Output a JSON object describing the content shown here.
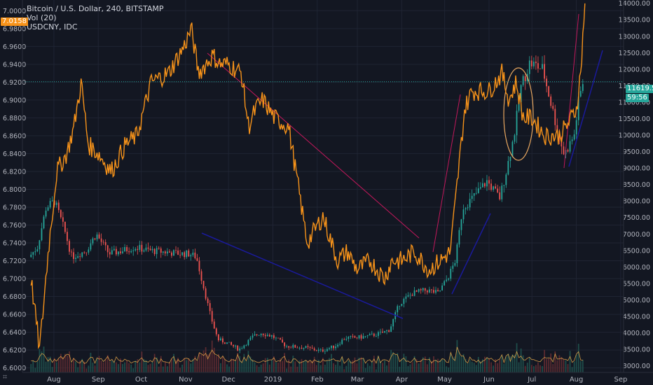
{
  "legend": {
    "line1": "Bitcoin / U.S. Dollar, 240, BITSTAMP",
    "line2": "Vol (20)",
    "line3": "USDCNY, IDC"
  },
  "tags": {
    "left_usdcny": "7.0158",
    "right_price": "11619.50",
    "right_timer": "59:56"
  },
  "colors": {
    "background": "#131722",
    "usdcny_line": "#f7931a",
    "bullish_candle": "#26a69a",
    "bearish_candle": "#ef5350",
    "trend_red": "#c2185b",
    "trend_blue": "#1a1a9a"
  },
  "icons": {
    "corner": "tv-logo-icon"
  },
  "chart_data": {
    "type": "line",
    "x_ticks": [
      "Aug",
      "Sep",
      "Oct",
      "Nov",
      "Dec",
      "2019",
      "Feb",
      "Mar",
      "Apr",
      "May",
      "Jun",
      "Jul",
      "Aug",
      "Sep"
    ],
    "left_axis": {
      "ticks": [
        "7.0000",
        "6.9800",
        "6.9600",
        "6.9400",
        "6.9200",
        "6.9000",
        "6.8800",
        "6.8600",
        "6.8400",
        "6.8200",
        "6.8000",
        "6.7800",
        "6.7600",
        "6.7400",
        "6.7200",
        "6.7000",
        "6.6800",
        "6.6600",
        "6.6400",
        "6.6200",
        "6.6000"
      ],
      "range": [
        6.595,
        7.012
      ]
    },
    "right_axis": {
      "ticks": [
        "14000.00",
        "13500.00",
        "13000.00",
        "12500.00",
        "12000.00",
        "11500.00",
        "11000.00",
        "10500.00",
        "10000.00",
        "9500.00",
        "9000.00",
        "8500.00",
        "8000.00",
        "7500.00",
        "7000.00",
        "6500.00",
        "6000.00",
        "5500.00",
        "5000.00",
        "4500.00",
        "4000.00",
        "3500.00",
        "3000.00"
      ],
      "range": [
        2800,
        14100
      ]
    },
    "series": [
      {
        "name": "USDCNY, IDC",
        "x": [
          "2018-07-16",
          "2018-07-22",
          "2018-07-28",
          "2018-08-03",
          "2018-08-10",
          "2018-08-15",
          "2018-08-20",
          "2018-08-25",
          "2018-09-01",
          "2018-09-10",
          "2018-09-20",
          "2018-09-28",
          "2018-10-08",
          "2018-10-20",
          "2018-10-31",
          "2018-11-05",
          "2018-11-10",
          "2018-11-20",
          "2018-11-25",
          "2018-12-01",
          "2018-12-10",
          "2018-12-15",
          "2018-12-20",
          "2018-12-25",
          "2019-01-02",
          "2019-01-12",
          "2019-01-25",
          "2019-02-05",
          "2019-02-15",
          "2019-02-22",
          "2019-03-01",
          "2019-03-10",
          "2019-03-20",
          "2019-03-25",
          "2019-04-01",
          "2019-04-10",
          "2019-04-20",
          "2019-04-28",
          "2019-05-05",
          "2019-05-10",
          "2019-05-15",
          "2019-05-20",
          "2019-06-01",
          "2019-06-10",
          "2019-06-15",
          "2019-06-20",
          "2019-06-25",
          "2019-07-01",
          "2019-07-10",
          "2019-07-20",
          "2019-07-25",
          "2019-08-01",
          "2019-08-04",
          "2019-08-07"
        ],
        "y": [
          6.7,
          6.62,
          6.73,
          6.82,
          6.84,
          6.87,
          6.92,
          6.85,
          6.84,
          6.82,
          6.85,
          6.86,
          6.92,
          6.93,
          6.96,
          6.98,
          6.93,
          6.95,
          6.94,
          6.94,
          6.93,
          6.87,
          6.89,
          6.9,
          6.88,
          6.87,
          6.74,
          6.77,
          6.72,
          6.73,
          6.71,
          6.72,
          6.7,
          6.72,
          6.72,
          6.73,
          6.71,
          6.72,
          6.73,
          6.81,
          6.89,
          6.91,
          6.91,
          6.93,
          6.9,
          6.92,
          6.88,
          6.88,
          6.86,
          6.86,
          6.87,
          6.89,
          6.93,
          7.01
        ]
      },
      {
        "name": "Bitcoin / U.S. Dollar, 240, BITSTAMP",
        "x": [
          "2018-07-16",
          "2018-07-22",
          "2018-07-28",
          "2018-08-03",
          "2018-08-10",
          "2018-08-15",
          "2018-08-20",
          "2018-08-25",
          "2018-09-01",
          "2018-09-10",
          "2018-09-20",
          "2018-09-28",
          "2018-10-08",
          "2018-10-20",
          "2018-10-31",
          "2018-11-05",
          "2018-11-10",
          "2018-11-20",
          "2018-11-25",
          "2018-12-01",
          "2018-12-10",
          "2018-12-15",
          "2018-12-20",
          "2018-12-25",
          "2019-01-02",
          "2019-01-12",
          "2019-01-25",
          "2019-02-05",
          "2019-02-15",
          "2019-02-22",
          "2019-03-01",
          "2019-03-10",
          "2019-03-20",
          "2019-03-25",
          "2019-04-01",
          "2019-04-10",
          "2019-04-20",
          "2019-04-28",
          "2019-05-05",
          "2019-05-10",
          "2019-05-15",
          "2019-05-20",
          "2019-06-01",
          "2019-06-10",
          "2019-06-15",
          "2019-06-20",
          "2019-06-25",
          "2019-07-01",
          "2019-07-10",
          "2019-07-20",
          "2019-07-25",
          "2019-08-01",
          "2019-08-04",
          "2019-08-07"
        ],
        "y": [
          6300,
          6600,
          7800,
          8000,
          7100,
          6300,
          6400,
          6500,
          7000,
          6400,
          6500,
          6600,
          6500,
          6450,
          6400,
          6400,
          6300,
          4500,
          3800,
          3700,
          3500,
          3700,
          3900,
          4000,
          3900,
          3600,
          3550,
          3450,
          3600,
          3850,
          3850,
          3900,
          4000,
          4100,
          4900,
          5200,
          5300,
          5200,
          5700,
          6200,
          7800,
          8000,
          8600,
          8100,
          9000,
          10000,
          11500,
          12200,
          12000,
          10200,
          9400,
          10000,
          11000,
          11600
        ]
      }
    ]
  }
}
